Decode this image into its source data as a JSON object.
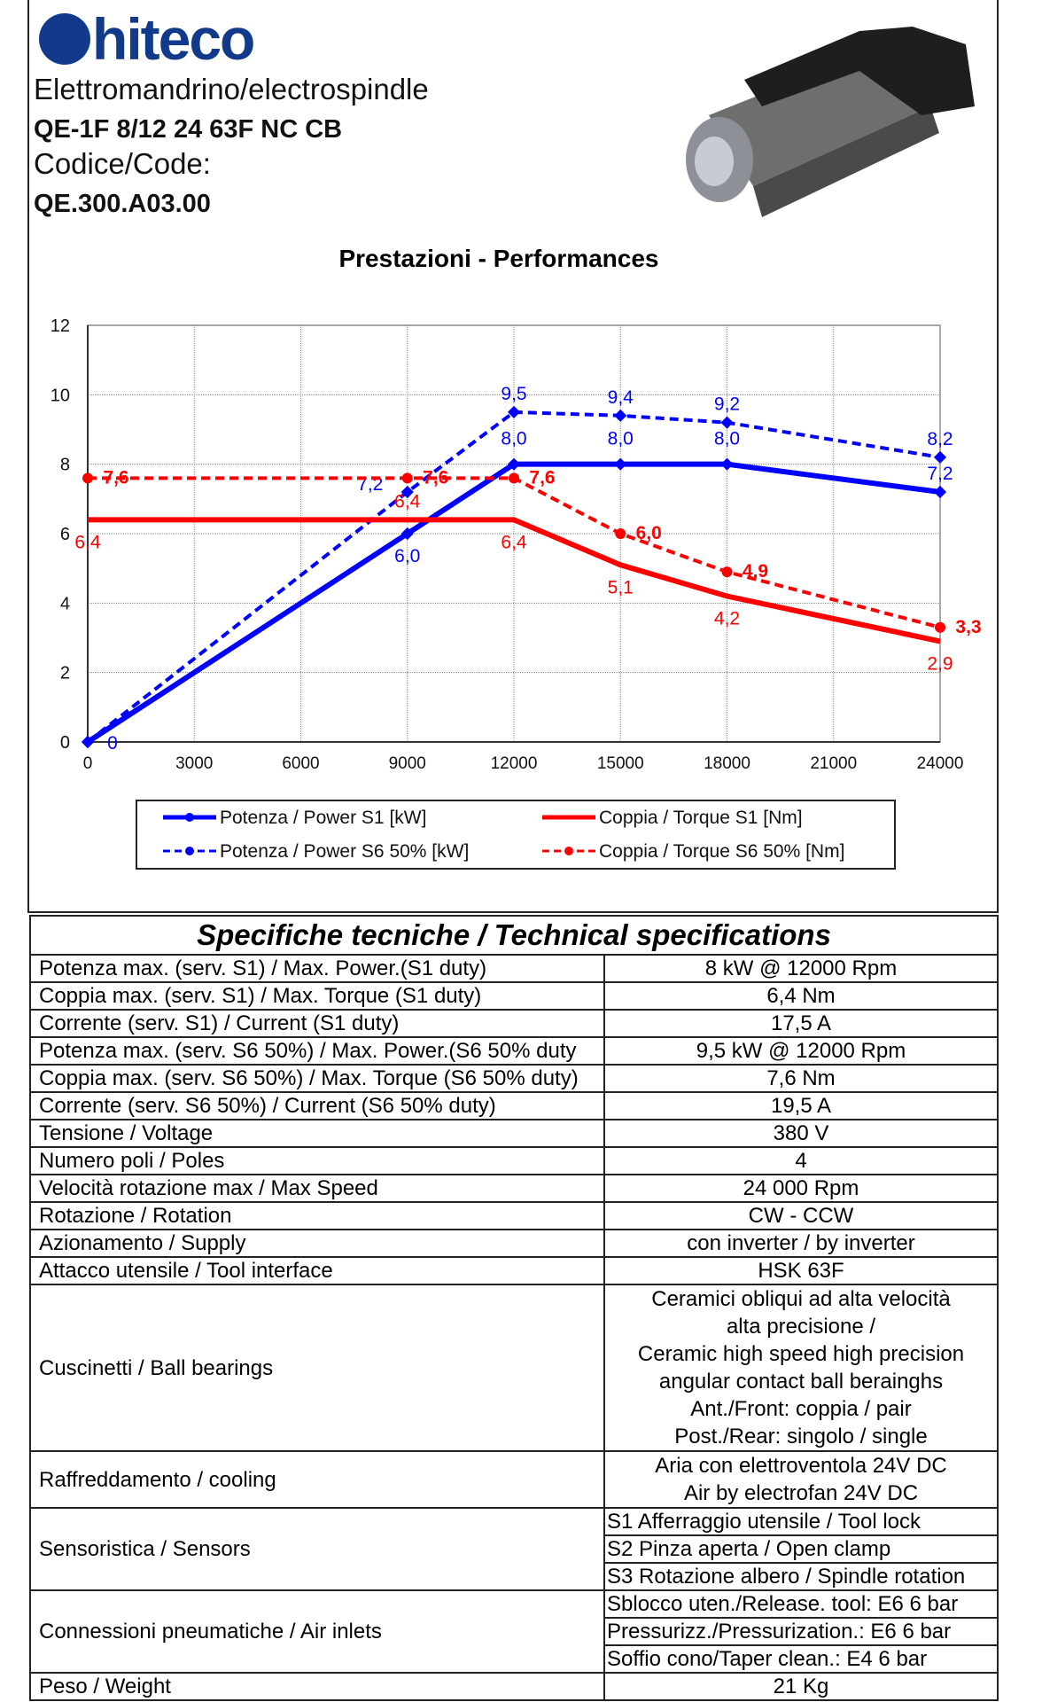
{
  "header": {
    "brand": "hiteco",
    "subtitle": "Elettromandrino/electrospindle",
    "model": "QE-1F 8/12 24 63F NC CB",
    "code_label": "Codice/Code:",
    "code": "QE.300.A03.00"
  },
  "chart_data": {
    "type": "line",
    "title": "Prestazioni - Performances",
    "xlabel": "",
    "ylabel": "",
    "xlim": [
      0,
      24000
    ],
    "ylim": [
      0,
      12
    ],
    "xticks": [
      "0",
      "3000",
      "6000",
      "9000",
      "12000",
      "15000",
      "18000",
      "21000",
      "24000"
    ],
    "yticks": [
      "0",
      "2",
      "4",
      "6",
      "8",
      "10",
      "12"
    ],
    "grid": true,
    "legend_position": "bottom",
    "series": [
      {
        "name": "Potenza / Power S1 [kW]",
        "color": "#0000ff",
        "dash": false,
        "x": [
          0,
          9000,
          12000,
          15000,
          18000,
          24000
        ],
        "y": [
          0,
          6.0,
          8.0,
          8.0,
          8.0,
          7.2
        ],
        "labels": [
          "0",
          "6,0",
          "8,0",
          "8,0",
          "8,0",
          "7,2"
        ]
      },
      {
        "name": "Potenza / Power S6 50% [kW]",
        "color": "#0000ff",
        "dash": true,
        "x": [
          0,
          9000,
          12000,
          15000,
          18000,
          24000
        ],
        "y": [
          0,
          7.2,
          9.5,
          9.4,
          9.2,
          8.2
        ],
        "labels": [
          "",
          "7,2",
          "9,5",
          "9,4",
          "9,2",
          "8,2"
        ]
      },
      {
        "name": "Coppia / Torque S1 [Nm]",
        "color": "#ff0000",
        "dash": false,
        "x": [
          0,
          9000,
          12000,
          15000,
          18000,
          24000
        ],
        "y": [
          6.4,
          6.4,
          6.4,
          5.1,
          4.2,
          2.9
        ],
        "labels": [
          "6,4",
          "6,4",
          "6,4",
          "5,1",
          "4,2",
          "2,9"
        ]
      },
      {
        "name": "Coppia / Torque S6 50% [Nm]",
        "color": "#ff0000",
        "dash": true,
        "x": [
          0,
          9000,
          12000,
          15000,
          18000,
          24000
        ],
        "y": [
          7.6,
          7.6,
          7.6,
          6.0,
          4.9,
          3.3
        ],
        "labels": [
          "7,6",
          "7,6",
          "7,6",
          "6,0",
          "4,9",
          "3,3"
        ]
      }
    ]
  },
  "specs": {
    "title": "Specifiche tecniche / Technical specifications",
    "rows": [
      {
        "label": "Potenza max. (serv. S1) / Max. Power.(S1 duty)",
        "value": "8 kW @ 12000 Rpm"
      },
      {
        "label": "Coppia max. (serv. S1) / Max. Torque (S1 duty)",
        "value": "6,4 Nm"
      },
      {
        "label": "Corrente (serv. S1) / Current (S1 duty)",
        "value": "17,5 A"
      },
      {
        "label": "Potenza max. (serv. S6 50%) / Max. Power.(S6 50% duty",
        "value": "9,5 kW @ 12000 Rpm"
      },
      {
        "label": "Coppia max. (serv. S6 50%) / Max. Torque (S6 50% duty)",
        "value": "7,6 Nm"
      },
      {
        "label": "Corrente (serv. S6 50%) / Current (S6 50% duty)",
        "value": "19,5 A"
      },
      {
        "label": "Tensione / Voltage",
        "value": "380 V"
      },
      {
        "label": "Numero poli / Poles",
        "value": "4"
      },
      {
        "label": "Velocità rotazione max / Max Speed",
        "value": "24 000 Rpm"
      },
      {
        "label": "Rotazione / Rotation",
        "value": "CW - CCW"
      },
      {
        "label": "Azionamento / Supply",
        "value": "con inverter / by inverter"
      },
      {
        "label": "Attacco utensile / Tool interface",
        "value": "HSK 63F"
      }
    ],
    "bearings": {
      "label": "Cuscinetti / Ball bearings",
      "lines": [
        "Ceramici obliqui ad alta velocità",
        "alta precisione /",
        "Ceramic high speed high precision",
        "angular contact ball berainghs",
        "Ant./Front: coppia / pair",
        "Post./Rear: singolo / single"
      ]
    },
    "cooling": {
      "label": "Raffreddamento / cooling",
      "lines": [
        "Aria con elettroventola 24V DC",
        "Air by electrofan 24V DC"
      ]
    },
    "sensors": {
      "label": "Sensoristica / Sensors",
      "items": [
        "S1 Afferraggio utensile / Tool lock",
        "S2 Pinza aperta / Open clamp",
        "S3 Rotazione albero / Spindle rotation"
      ]
    },
    "air": {
      "label": "Connessioni pneumatiche / Air inlets",
      "items": [
        "Sblocco uten./Release. tool: E6 6 bar",
        "Pressurizz./Pressurization.: E6 6 bar",
        "Soffio cono/Taper clean.: E4 6 bar"
      ]
    },
    "weight": {
      "label": "Peso / Weight",
      "value": "21 Kg"
    }
  }
}
